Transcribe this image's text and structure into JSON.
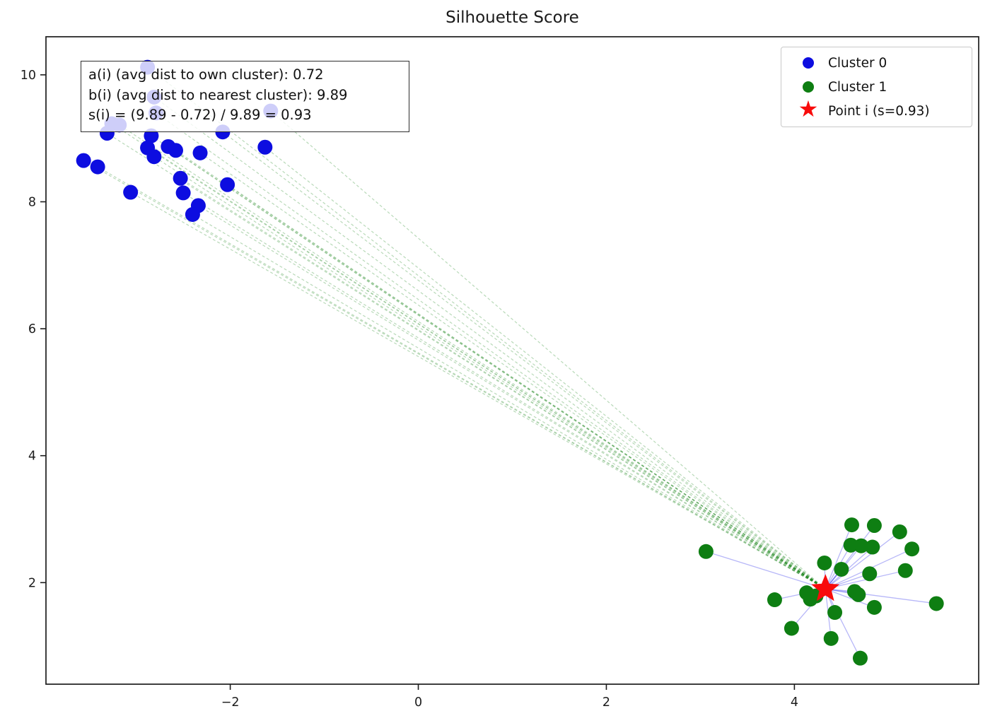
{
  "chart_data": {
    "type": "scatter",
    "title": "Silhouette Score",
    "xlim": [
      -3.96,
      5.96
    ],
    "ylim": [
      0.4,
      10.6
    ],
    "xticks": {
      "values": [
        -2,
        0,
        2,
        4
      ],
      "labels": [
        "−2",
        "0",
        "2",
        "4"
      ]
    },
    "yticks": {
      "values": [
        2,
        4,
        6,
        8,
        10
      ],
      "labels": [
        "2",
        "4",
        "6",
        "8",
        "10"
      ]
    },
    "grid": false,
    "legend_position": "upper right",
    "series": [
      {
        "name": "Cluster 0",
        "marker": "circle",
        "color": "#0d0de0",
        "points": [
          [
            -3.31,
            9.08
          ],
          [
            -3.56,
            8.65
          ],
          [
            -3.41,
            8.55
          ],
          [
            -2.84,
            9.04
          ],
          [
            -2.88,
            8.85
          ],
          [
            -2.81,
            8.71
          ],
          [
            -2.66,
            8.87
          ],
          [
            -2.58,
            8.81
          ],
          [
            -2.32,
            8.77
          ],
          [
            -2.08,
            9.1
          ],
          [
            -1.63,
            8.86
          ],
          [
            -2.53,
            8.37
          ],
          [
            -2.03,
            8.27
          ],
          [
            -3.06,
            8.15
          ],
          [
            -2.5,
            8.14
          ],
          [
            -2.34,
            7.94
          ],
          [
            -2.4,
            7.8
          ],
          [
            -2.88,
            10.12
          ],
          [
            -2.81,
            9.65
          ],
          [
            -2.79,
            9.4
          ],
          [
            -1.57,
            9.43
          ],
          [
            -3.26,
            9.23
          ],
          [
            -3.18,
            9.21
          ]
        ]
      },
      {
        "name": "Cluster 1",
        "marker": "circle",
        "color": "#0e7e12",
        "points": [
          [
            3.06,
            2.49
          ],
          [
            4.61,
            2.91
          ],
          [
            4.85,
            2.9
          ],
          [
            5.12,
            2.8
          ],
          [
            4.6,
            2.59
          ],
          [
            4.71,
            2.58
          ],
          [
            4.83,
            2.56
          ],
          [
            5.25,
            2.53
          ],
          [
            4.32,
            2.31
          ],
          [
            4.5,
            2.21
          ],
          [
            4.8,
            2.14
          ],
          [
            5.18,
            2.19
          ],
          [
            4.13,
            1.84
          ],
          [
            4.17,
            1.74
          ],
          [
            4.23,
            1.79
          ],
          [
            3.79,
            1.73
          ],
          [
            4.64,
            1.86
          ],
          [
            4.68,
            1.81
          ],
          [
            4.85,
            1.61
          ],
          [
            5.51,
            1.67
          ],
          [
            4.43,
            1.53
          ],
          [
            3.97,
            1.28
          ],
          [
            4.39,
            1.12
          ],
          [
            4.7,
            0.81
          ]
        ]
      },
      {
        "name": "Point i (s=0.93)",
        "marker": "star",
        "color": "#f80b0b",
        "points": [
          [
            4.33,
            1.9
          ]
        ]
      }
    ],
    "connectors": [
      {
        "from_series": 2,
        "to_series": 1,
        "style": "solid",
        "color": "rgba(50,50,235,0.35)",
        "width": 1.3
      },
      {
        "from_series": 2,
        "to_series": 0,
        "style": "dashed",
        "color": "rgba(20,128,20,0.30)",
        "width": 1.2,
        "dash": "4 3.2"
      }
    ]
  },
  "annotation": {
    "line1": "a(i) (avg dist to own cluster): 0.72",
    "line2": "b(i) (avg dist to nearest cluster): 9.89",
    "line3": "s(i) = (9.89 - 0.72) / 9.89 = 0.93"
  },
  "legend": {
    "items": [
      {
        "label": "Cluster 0",
        "marker": "circle",
        "color": "#0d0de0"
      },
      {
        "label": "Cluster 1",
        "marker": "circle",
        "color": "#0e7e12"
      },
      {
        "label": "Point i (s=0.93)",
        "marker": "star",
        "color": "#f80b0b"
      }
    ]
  }
}
